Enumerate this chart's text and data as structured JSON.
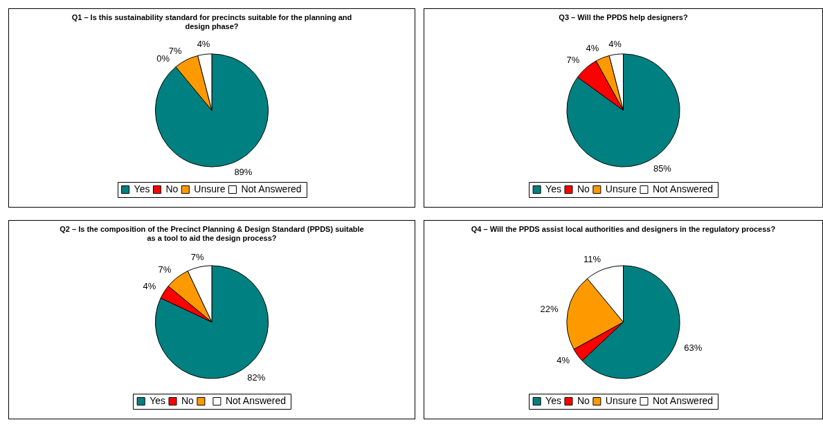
{
  "chart_data": [
    {
      "type": "pie",
      "title": "Q1 – Is this sustainability standard for precincts suitable for the planning and design phase?",
      "categories": [
        "Yes",
        "No",
        "Unsure",
        "Not Answered"
      ],
      "values": [
        89,
        0,
        7,
        4
      ],
      "colors": [
        "#008080",
        "#ff0000",
        "#ff9900",
        "#ffffff"
      ],
      "value_labels": [
        "89%",
        "0%",
        "7%",
        "4%"
      ],
      "legend": "bottom"
    },
    {
      "type": "pie",
      "title": "Q3 – Will the PPDS help designers?",
      "categories": [
        "Yes",
        "No",
        "Unsure",
        "Not Answered"
      ],
      "values": [
        85,
        7,
        4,
        4
      ],
      "colors": [
        "#008080",
        "#ff0000",
        "#ff9900",
        "#ffffff"
      ],
      "value_labels": [
        "85%",
        "7%",
        "4%",
        "4%"
      ],
      "legend": "bottom"
    },
    {
      "type": "pie",
      "title": "Q2 – Is the composition of the Precinct Planning & Design Standard (PPDS) suitable as a tool to aid the design process?",
      "categories": [
        "Yes",
        "No",
        null,
        "Not Answered"
      ],
      "values": [
        82,
        4,
        7,
        7
      ],
      "colors": [
        "#008080",
        "#ff0000",
        "#ff9900",
        "#ffffff"
      ],
      "value_labels": [
        "82%",
        "4%",
        "7%",
        "7%"
      ],
      "legend": "bottom"
    },
    {
      "type": "pie",
      "title": "Q4 – Will the PPDS assist local authorities and designers in the regulatory process?",
      "categories": [
        "Yes",
        "No",
        "Unsure",
        "Not Answered"
      ],
      "values": [
        63,
        4,
        22,
        11
      ],
      "colors": [
        "#008080",
        "#ff0000",
        "#ff9900",
        "#ffffff"
      ],
      "value_labels": [
        "63%",
        "4%",
        "22%",
        "11%"
      ],
      "legend": "bottom"
    }
  ]
}
